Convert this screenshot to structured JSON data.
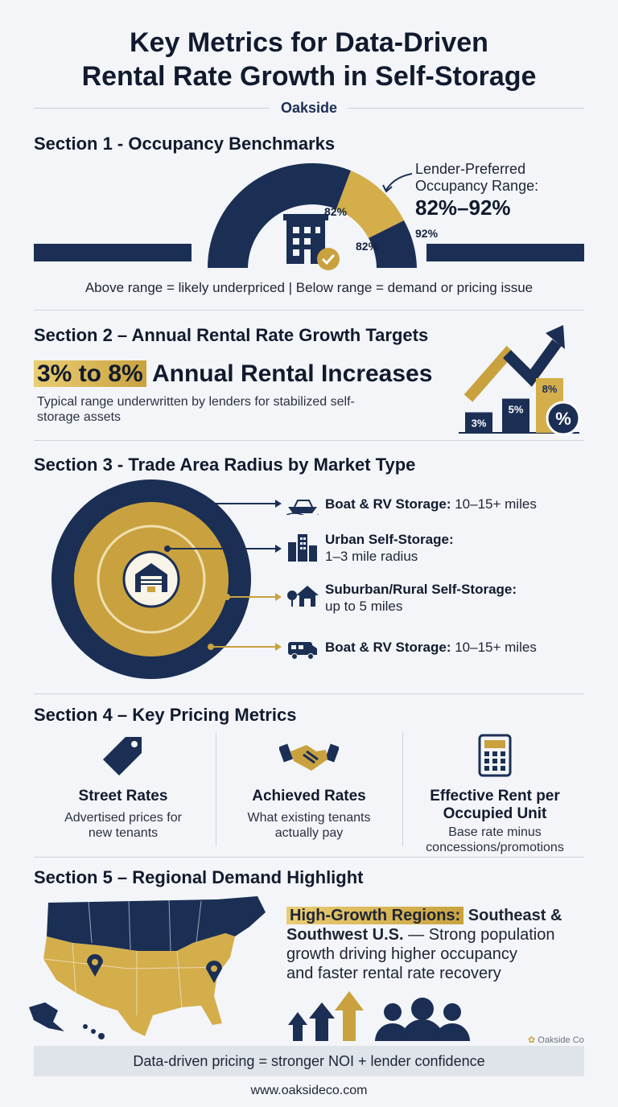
{
  "title_line1": "Key Metrics for Data-Driven",
  "title_line2": "Rental Rate Growth in Self-Storage",
  "brand": "Oakside",
  "section1": {
    "title": "Section 1 - Occupancy Benchmarks",
    "callout_label_1": "Lender-Preferred",
    "callout_label_2": "Occupancy Range:",
    "callout_value": "82%–92%",
    "gauge_label_a": "82%",
    "gauge_label_b": "82%",
    "gauge_label_c": "92%",
    "caption": "Above range = likely underpriced | Below range = demand or pricing issue"
  },
  "section2": {
    "title": "Section 2 – Annual Rental Rate Growth Targets",
    "highlight": "3% to 8%",
    "headline": "Annual Rental Increases",
    "description_1": "Typical range underwritten by lenders for stabilized self-",
    "description_2": "storage assets",
    "bars": [
      {
        "label": "3%",
        "value": 3
      },
      {
        "label": "5%",
        "value": 5
      },
      {
        "label": "8%",
        "value": 8
      }
    ],
    "badge": "%"
  },
  "section3": {
    "title": "Section 3 - Trade Area Radius by Market Type",
    "items": [
      {
        "bold": "Boat & RV Storage:",
        "text": " 10–15+ miles",
        "icon": "boat-icon"
      },
      {
        "bold": "Urban Self-Storage:",
        "text": "1–3 mile radius",
        "icon": "city-icon"
      },
      {
        "bold": "Suburban/Rural Self-Storage:",
        "text": "up to 5 miles",
        "icon": "house-icon"
      },
      {
        "bold": "Boat & RV Storage:",
        "text": " 10–15+ miles",
        "icon": "rv-icon"
      }
    ]
  },
  "section4": {
    "title": "Section 4 – Key Pricing Metrics",
    "metrics": [
      {
        "heading": "Street Rates",
        "desc_1": "Advertised prices for",
        "desc_2": "new tenants",
        "icon": "price-tag-icon"
      },
      {
        "heading": "Achieved Rates",
        "desc_1": "What existing tenants",
        "desc_2": "actually pay",
        "icon": "handshake-icon"
      },
      {
        "heading_1": "Effective Rent per",
        "heading_2": "Occupied Unit",
        "desc_1": "Base rate minus",
        "desc_2": "concessions/promotions",
        "icon": "calculator-icon"
      }
    ]
  },
  "section5": {
    "title": "Section 5 – Regional Demand Highlight",
    "highlight": "High-Growth Regions:",
    "line1_rest": " Southeast &",
    "line2_bold": "Southwest U.S.",
    "line2_rest": " — Strong population",
    "line3": "growth driving higher occupancy",
    "line4": "and faster rental rate recovery",
    "watermark": "Oakside Co"
  },
  "footer": {
    "banner": "Data-driven pricing = stronger NOI + lender confidence",
    "url": "www.oaksideco.com"
  },
  "colors": {
    "navy": "#1b2f55",
    "gold": "#c9a23f",
    "background": "#f3f5f8"
  }
}
